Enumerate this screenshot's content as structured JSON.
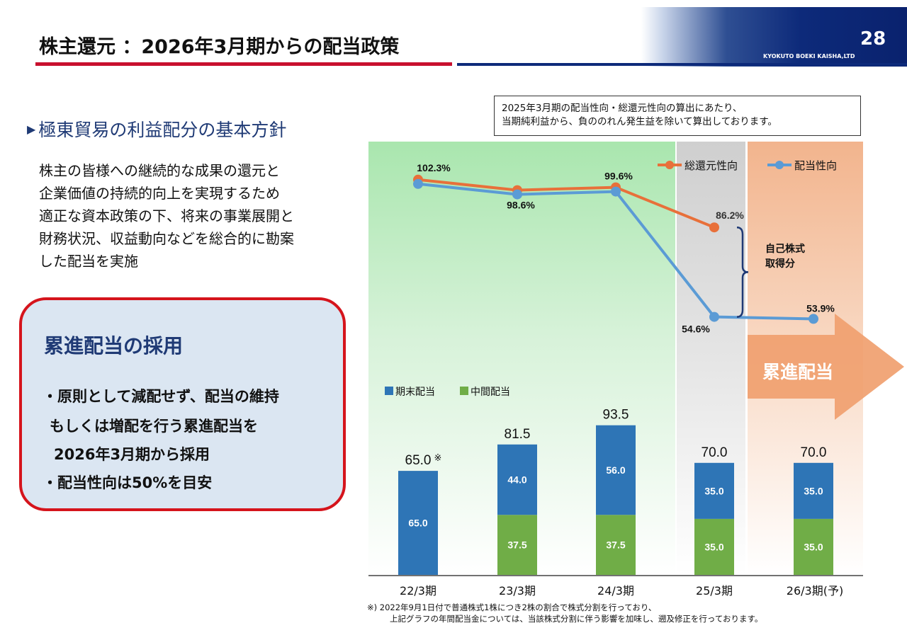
{
  "header": {
    "title": "株主還元 ：2026年3月期からの配当政策",
    "page_number": "28",
    "company": "KYOKUTO BOEKI KAISHA,LTD"
  },
  "left": {
    "section_heading": "極東貿易の利益配分の基本方針",
    "policy_lines": [
      "株主の皆様への継続的な成果の還元と",
      "企業価値の持続的向上を実現するため",
      "適正な資本政策の下、将来の事業展開と",
      "財務状況、収益動向などを総合的に勘案",
      "した配当を実施"
    ],
    "box": {
      "title": "累進配当の採用",
      "lines": [
        "・原則として減配せず、配当の維持",
        "もしくは増配を行う累進配当を",
        "2026年3月期から採用",
        "・配当性向は50%を目安"
      ]
    }
  },
  "note": {
    "lines": [
      "2025年3月期の配当性向・総還元性向の算出にあたり、",
      "当期純利益から、負ののれん発生益を除いて算出しております。"
    ]
  },
  "progressive_label": "累進配当",
  "bracket_label": [
    "自己株式",
    "取得分"
  ],
  "colors": {
    "year_end": "#2e75b6",
    "interim": "#70ad47",
    "total_return": "#e8703a",
    "payout": "#5b9bd5",
    "accent_red": "#c8102e",
    "navy": "#0d2a7a"
  },
  "footnote": [
    "※) 2022年9月1日付で普通株式1株につき2株の割合で株式分割を行っており、",
    "上記グラフの年間配当金については、当該株式分割に伴う影響を加味し、遡及修正を行っております。"
  ],
  "chart_data": [
    {
      "type": "bar",
      "stacked": true,
      "categories": [
        "22/3期",
        "23/3期",
        "24/3期",
        "25/3期",
        "26/3期(予)"
      ],
      "series": [
        {
          "name": "期末配当",
          "values": [
            65.0,
            44.0,
            56.0,
            35.0,
            35.0
          ],
          "labels": [
            "65.0",
            "44.0",
            "56.0",
            "35.0",
            "35.0"
          ]
        },
        {
          "name": "中間配当",
          "values": [
            0,
            37.5,
            37.5,
            35.0,
            35.0
          ],
          "labels": [
            "",
            "37.5",
            "37.5",
            "35.0",
            "35.0"
          ]
        }
      ],
      "totals": [
        "65.0",
        "81.5",
        "93.5",
        "70.0",
        "70.0"
      ],
      "total_marks": [
        "※",
        "",
        "",
        "",
        ""
      ]
    },
    {
      "type": "line",
      "categories": [
        "22/3期",
        "23/3期",
        "24/3期",
        "25/3期",
        "26/3期(予)"
      ],
      "series": [
        {
          "name": "総還元性向",
          "values": [
            102.3,
            98.6,
            99.6,
            86.2,
            null
          ]
        },
        {
          "name": "配当性向",
          "values": [
            102.3,
            98.6,
            99.6,
            54.6,
            53.9
          ]
        }
      ],
      "point_labels": [
        {
          "series": 0,
          "index": 0,
          "text": "102.3%"
        },
        {
          "series": 0,
          "index": 1,
          "text": "98.6%"
        },
        {
          "series": 0,
          "index": 2,
          "text": "99.6%"
        },
        {
          "series": 0,
          "index": 3,
          "text": "86.2%"
        },
        {
          "series": 1,
          "index": 3,
          "text": "54.6%"
        },
        {
          "series": 1,
          "index": 4,
          "text": "53.9%"
        }
      ],
      "legend_position": "top-right"
    }
  ]
}
